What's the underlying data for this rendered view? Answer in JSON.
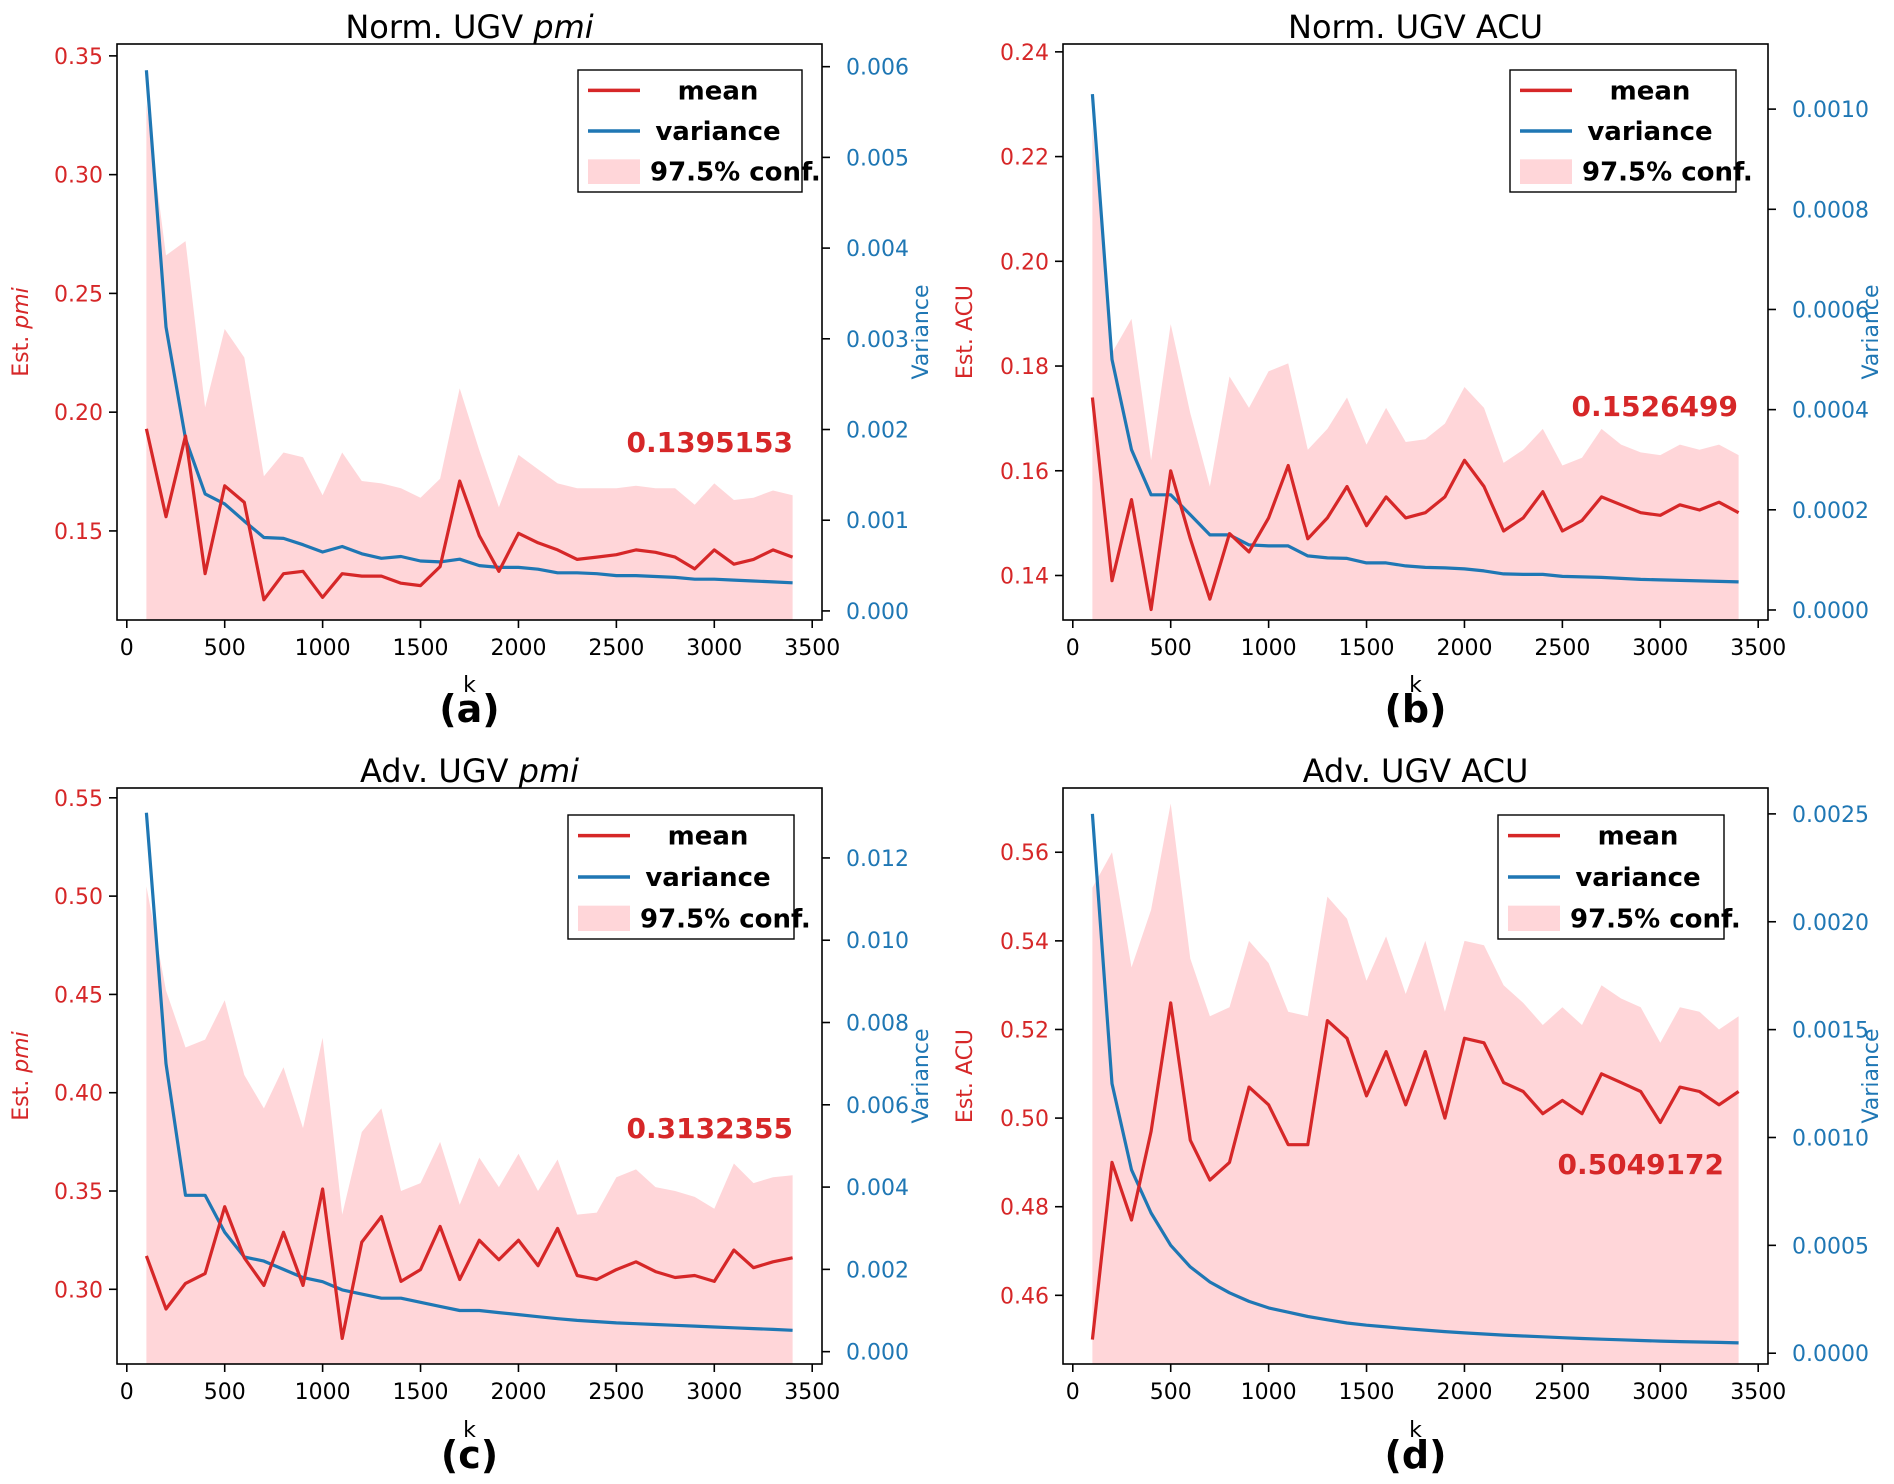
{
  "figure": {
    "colors": {
      "mean": "#d62728",
      "variance": "#1f77b4",
      "band": "#ffd6d9"
    }
  },
  "chart_data": [
    {
      "id": "a",
      "type": "line",
      "label": "(a)",
      "title_prefix": "Norm. UGV ",
      "title_italic": "pmi",
      "title_suffix": "",
      "xlabel": "k",
      "ylabel_prefix": "Est. ",
      "ylabel_italic": "pmi",
      "ylabel_suffix": "",
      "y2label": "Variance",
      "final_value": "0.1395153",
      "xlim": [
        -50,
        3550
      ],
      "ylim": [
        0.1125,
        0.355
      ],
      "y2lim": [
        -0.0001,
        0.00625
      ],
      "xticks": [
        0,
        500,
        1000,
        1500,
        2000,
        2500,
        3000,
        3500
      ],
      "yticks": [
        0.15,
        0.2,
        0.25,
        0.3,
        0.35
      ],
      "ytick_labels": [
        "0.15",
        "0.20",
        "0.25",
        "0.30",
        "0.35"
      ],
      "y2ticks": [
        0,
        0.001,
        0.002,
        0.003,
        0.004,
        0.005,
        0.006
      ],
      "y2tick_labels": [
        "0.000",
        "0.001",
        "0.002",
        "0.003",
        "0.004",
        "0.005",
        "0.006"
      ],
      "legend": [
        "mean",
        "variance",
        "97.5% conf."
      ],
      "x": [
        100,
        200,
        300,
        400,
        500,
        600,
        700,
        800,
        900,
        1000,
        1100,
        1200,
        1300,
        1400,
        1500,
        1600,
        1700,
        1800,
        1900,
        2000,
        2100,
        2200,
        2300,
        2400,
        2500,
        2600,
        2700,
        2800,
        2900,
        3000,
        3100,
        3200,
        3300,
        3400
      ],
      "mean": [
        0.193,
        0.156,
        0.19,
        0.132,
        0.169,
        0.162,
        0.121,
        0.132,
        0.133,
        0.122,
        0.132,
        0.131,
        0.131,
        0.128,
        0.127,
        0.135,
        0.171,
        0.148,
        0.133,
        0.149,
        0.145,
        0.142,
        0.138,
        0.139,
        0.14,
        0.142,
        0.141,
        0.139,
        0.134,
        0.142,
        0.136,
        0.138,
        0.142,
        0.139
      ],
      "upper": [
        0.33,
        0.266,
        0.272,
        0.202,
        0.235,
        0.223,
        0.173,
        0.183,
        0.181,
        0.165,
        0.183,
        0.171,
        0.17,
        0.168,
        0.164,
        0.172,
        0.21,
        0.184,
        0.16,
        0.182,
        0.176,
        0.17,
        0.168,
        0.168,
        0.168,
        0.169,
        0.168,
        0.168,
        0.161,
        0.17,
        0.163,
        0.164,
        0.167,
        0.165
      ],
      "lower_value": 0.1125,
      "variance": [
        0.00596,
        0.00313,
        0.0019,
        0.00129,
        0.00118,
        0.00099,
        0.00081,
        0.0008,
        0.00073,
        0.00065,
        0.00071,
        0.00063,
        0.00058,
        0.0006,
        0.00055,
        0.00054,
        0.00057,
        0.0005,
        0.00048,
        0.00048,
        0.00046,
        0.00042,
        0.00042,
        0.00041,
        0.00039,
        0.00039,
        0.00038,
        0.00037,
        0.00035,
        0.00035,
        0.00034,
        0.00033,
        0.00032,
        0.00031
      ]
    },
    {
      "id": "b",
      "type": "line",
      "label": "(b)",
      "title_prefix": "Norm. UGV ACU",
      "title_italic": "",
      "title_suffix": "",
      "xlabel": "k",
      "ylabel_prefix": "Est. ACU",
      "ylabel_italic": "",
      "ylabel_suffix": "",
      "y2label": "Variance",
      "final_value": "0.1526499",
      "xlim": [
        -50,
        3550
      ],
      "ylim": [
        0.1315,
        0.2415
      ],
      "y2lim": [
        -2e-05,
        0.00113
      ],
      "xticks": [
        0,
        500,
        1000,
        1500,
        2000,
        2500,
        3000,
        3500
      ],
      "yticks": [
        0.14,
        0.16,
        0.18,
        0.2,
        0.22,
        0.24
      ],
      "ytick_labels": [
        "0.14",
        "0.16",
        "0.18",
        "0.20",
        "0.22",
        "0.24"
      ],
      "y2ticks": [
        0,
        0.0002,
        0.0004,
        0.0006,
        0.0008,
        0.001
      ],
      "y2tick_labels": [
        "0.0000",
        "0.0002",
        "0.0004",
        "0.0006",
        "0.0008",
        "0.0010"
      ],
      "legend": [
        "mean",
        "variance",
        "97.5% conf."
      ],
      "x": [
        100,
        200,
        300,
        400,
        500,
        600,
        700,
        800,
        900,
        1000,
        1100,
        1200,
        1300,
        1400,
        1500,
        1600,
        1700,
        1800,
        1900,
        2000,
        2100,
        2200,
        2300,
        2400,
        2500,
        2600,
        2700,
        2800,
        2900,
        3000,
        3100,
        3200,
        3300,
        3400
      ],
      "mean": [
        0.174,
        0.139,
        0.1545,
        0.1335,
        0.16,
        0.147,
        0.1355,
        0.148,
        0.1445,
        0.151,
        0.161,
        0.147,
        0.151,
        0.157,
        0.1495,
        0.155,
        0.151,
        0.152,
        0.155,
        0.162,
        0.157,
        0.1485,
        0.151,
        0.156,
        0.1485,
        0.1505,
        0.155,
        0.1535,
        0.152,
        0.1515,
        0.1535,
        0.1525,
        0.154,
        0.152
      ],
      "upper": [
        0.226,
        0.1825,
        0.189,
        0.162,
        0.188,
        0.171,
        0.157,
        0.178,
        0.172,
        0.179,
        0.1805,
        0.164,
        0.168,
        0.174,
        0.165,
        0.172,
        0.1655,
        0.166,
        0.169,
        0.176,
        0.172,
        0.1615,
        0.164,
        0.168,
        0.161,
        0.1625,
        0.168,
        0.165,
        0.1635,
        0.163,
        0.165,
        0.164,
        0.165,
        0.163
      ],
      "lower_value": 0.1315,
      "variance": [
        0.00103,
        0.0005,
        0.00032,
        0.00023,
        0.00023,
        0.00019,
        0.00015,
        0.00015,
        0.00013,
        0.000128,
        0.000128,
        0.000108,
        0.000104,
        0.000103,
        9.4e-05,
        9.4e-05,
        8.8e-05,
        8.5e-05,
        8.4e-05,
        8.2e-05,
        7.8e-05,
        7.2e-05,
        7.1e-05,
        7.1e-05,
        6.7e-05,
        6.6e-05,
        6.5e-05,
        6.3e-05,
        6.1e-05,
        6e-05,
        5.9e-05,
        5.8e-05,
        5.7e-05,
        5.6e-05
      ]
    },
    {
      "id": "c",
      "type": "line",
      "label": "(c)",
      "title_prefix": "Adv. UGV ",
      "title_italic": "pmi",
      "title_suffix": "",
      "xlabel": "k",
      "ylabel_prefix": "Est. ",
      "ylabel_italic": "pmi",
      "ylabel_suffix": "",
      "y2label": "Variance",
      "final_value": "0.3132355",
      "xlim": [
        -50,
        3550
      ],
      "ylim": [
        0.262,
        0.555
      ],
      "y2lim": [
        -0.0003,
        0.0137
      ],
      "xticks": [
        0,
        500,
        1000,
        1500,
        2000,
        2500,
        3000,
        3500
      ],
      "yticks": [
        0.3,
        0.35,
        0.4,
        0.45,
        0.5,
        0.55
      ],
      "ytick_labels": [
        "0.30",
        "0.35",
        "0.40",
        "0.45",
        "0.50",
        "0.55"
      ],
      "y2ticks": [
        0,
        0.002,
        0.004,
        0.006,
        0.008,
        0.01,
        0.012
      ],
      "y2tick_labels": [
        "0.000",
        "0.002",
        "0.004",
        "0.006",
        "0.008",
        "0.010",
        "0.012"
      ],
      "legend": [
        "mean",
        "variance",
        "97.5% conf."
      ],
      "x": [
        100,
        200,
        300,
        400,
        500,
        600,
        700,
        800,
        900,
        1000,
        1100,
        1200,
        1300,
        1400,
        1500,
        1600,
        1700,
        1800,
        1900,
        2000,
        2100,
        2200,
        2300,
        2400,
        2500,
        2600,
        2700,
        2800,
        2900,
        3000,
        3100,
        3200,
        3300,
        3400
      ],
      "mean": [
        0.317,
        0.29,
        0.303,
        0.308,
        0.342,
        0.316,
        0.302,
        0.329,
        0.302,
        0.351,
        0.275,
        0.324,
        0.337,
        0.304,
        0.31,
        0.332,
        0.305,
        0.325,
        0.315,
        0.325,
        0.312,
        0.331,
        0.307,
        0.305,
        0.31,
        0.314,
        0.309,
        0.306,
        0.307,
        0.304,
        0.32,
        0.311,
        0.314,
        0.316
      ],
      "upper": [
        0.505,
        0.452,
        0.423,
        0.427,
        0.447,
        0.409,
        0.392,
        0.413,
        0.382,
        0.428,
        0.338,
        0.38,
        0.392,
        0.35,
        0.354,
        0.375,
        0.343,
        0.367,
        0.352,
        0.369,
        0.35,
        0.366,
        0.338,
        0.339,
        0.357,
        0.361,
        0.352,
        0.35,
        0.347,
        0.341,
        0.364,
        0.354,
        0.357,
        0.358
      ],
      "lower_value": 0.262,
      "variance": [
        0.0131,
        0.007,
        0.0038,
        0.0038,
        0.0029,
        0.0023,
        0.0022,
        0.002,
        0.0018,
        0.0017,
        0.0015,
        0.0014,
        0.0013,
        0.0013,
        0.0012,
        0.0011,
        0.001,
        0.001,
        0.00095,
        0.0009,
        0.00085,
        0.0008,
        0.00076,
        0.00073,
        0.0007,
        0.00068,
        0.00066,
        0.00064,
        0.00062,
        0.0006,
        0.00058,
        0.00056,
        0.00054,
        0.00052
      ]
    },
    {
      "id": "d",
      "type": "line",
      "label": "(d)",
      "title_prefix": "Adv. UGV ACU",
      "title_italic": "",
      "title_suffix": "",
      "xlabel": "k",
      "ylabel_prefix": "Est. ACU",
      "ylabel_italic": "",
      "ylabel_suffix": "",
      "y2label": "Variance",
      "final_value": "0.5049172",
      "xlim": [
        -50,
        3550
      ],
      "ylim": [
        0.4445,
        0.5745
      ],
      "y2lim": [
        -5e-05,
        0.00262
      ],
      "xticks": [
        0,
        500,
        1000,
        1500,
        2000,
        2500,
        3000,
        3500
      ],
      "yticks": [
        0.46,
        0.48,
        0.5,
        0.52,
        0.54,
        0.56
      ],
      "ytick_labels": [
        "0.46",
        "0.48",
        "0.50",
        "0.52",
        "0.54",
        "0.56"
      ],
      "y2ticks": [
        0,
        0.0005,
        0.001,
        0.0015,
        0.002,
        0.0025
      ],
      "y2tick_labels": [
        "0.0000",
        "0.0005",
        "0.0010",
        "0.0015",
        "0.0020",
        "0.0025"
      ],
      "legend": [
        "mean",
        "variance",
        "97.5% conf."
      ],
      "x": [
        100,
        200,
        300,
        400,
        500,
        600,
        700,
        800,
        900,
        1000,
        1100,
        1200,
        1300,
        1400,
        1500,
        1600,
        1700,
        1800,
        1900,
        2000,
        2100,
        2200,
        2300,
        2400,
        2500,
        2600,
        2700,
        2800,
        2900,
        3000,
        3100,
        3200,
        3300,
        3400
      ],
      "mean": [
        0.45,
        0.49,
        0.477,
        0.497,
        0.526,
        0.495,
        0.486,
        0.49,
        0.507,
        0.503,
        0.494,
        0.494,
        0.522,
        0.518,
        0.505,
        0.515,
        0.503,
        0.515,
        0.5,
        0.518,
        0.517,
        0.508,
        0.506,
        0.501,
        0.504,
        0.501,
        0.51,
        0.508,
        0.506,
        0.499,
        0.507,
        0.506,
        0.503,
        0.506
      ],
      "upper": [
        0.552,
        0.56,
        0.534,
        0.547,
        0.571,
        0.536,
        0.523,
        0.525,
        0.54,
        0.535,
        0.524,
        0.523,
        0.55,
        0.545,
        0.531,
        0.541,
        0.528,
        0.54,
        0.524,
        0.54,
        0.539,
        0.53,
        0.526,
        0.521,
        0.525,
        0.521,
        0.53,
        0.527,
        0.525,
        0.517,
        0.525,
        0.524,
        0.52,
        0.523
      ],
      "lower_value": 0.4445,
      "variance": [
        0.0025,
        0.00125,
        0.00085,
        0.00065,
        0.0005,
        0.0004,
        0.00033,
        0.00028,
        0.00024,
        0.00021,
        0.00019,
        0.00017,
        0.000155,
        0.00014,
        0.00013,
        0.000122,
        0.000114,
        0.000107,
        0.0001,
        9.4e-05,
        8.9e-05,
        8.4e-05,
        8e-05,
        7.6e-05,
        7.2e-05,
        6.8e-05,
        6.5e-05,
        6.2e-05,
        5.9e-05,
        5.6e-05,
        5.4e-05,
        5.2e-05,
        5e-05,
        4.8e-05
      ]
    }
  ]
}
